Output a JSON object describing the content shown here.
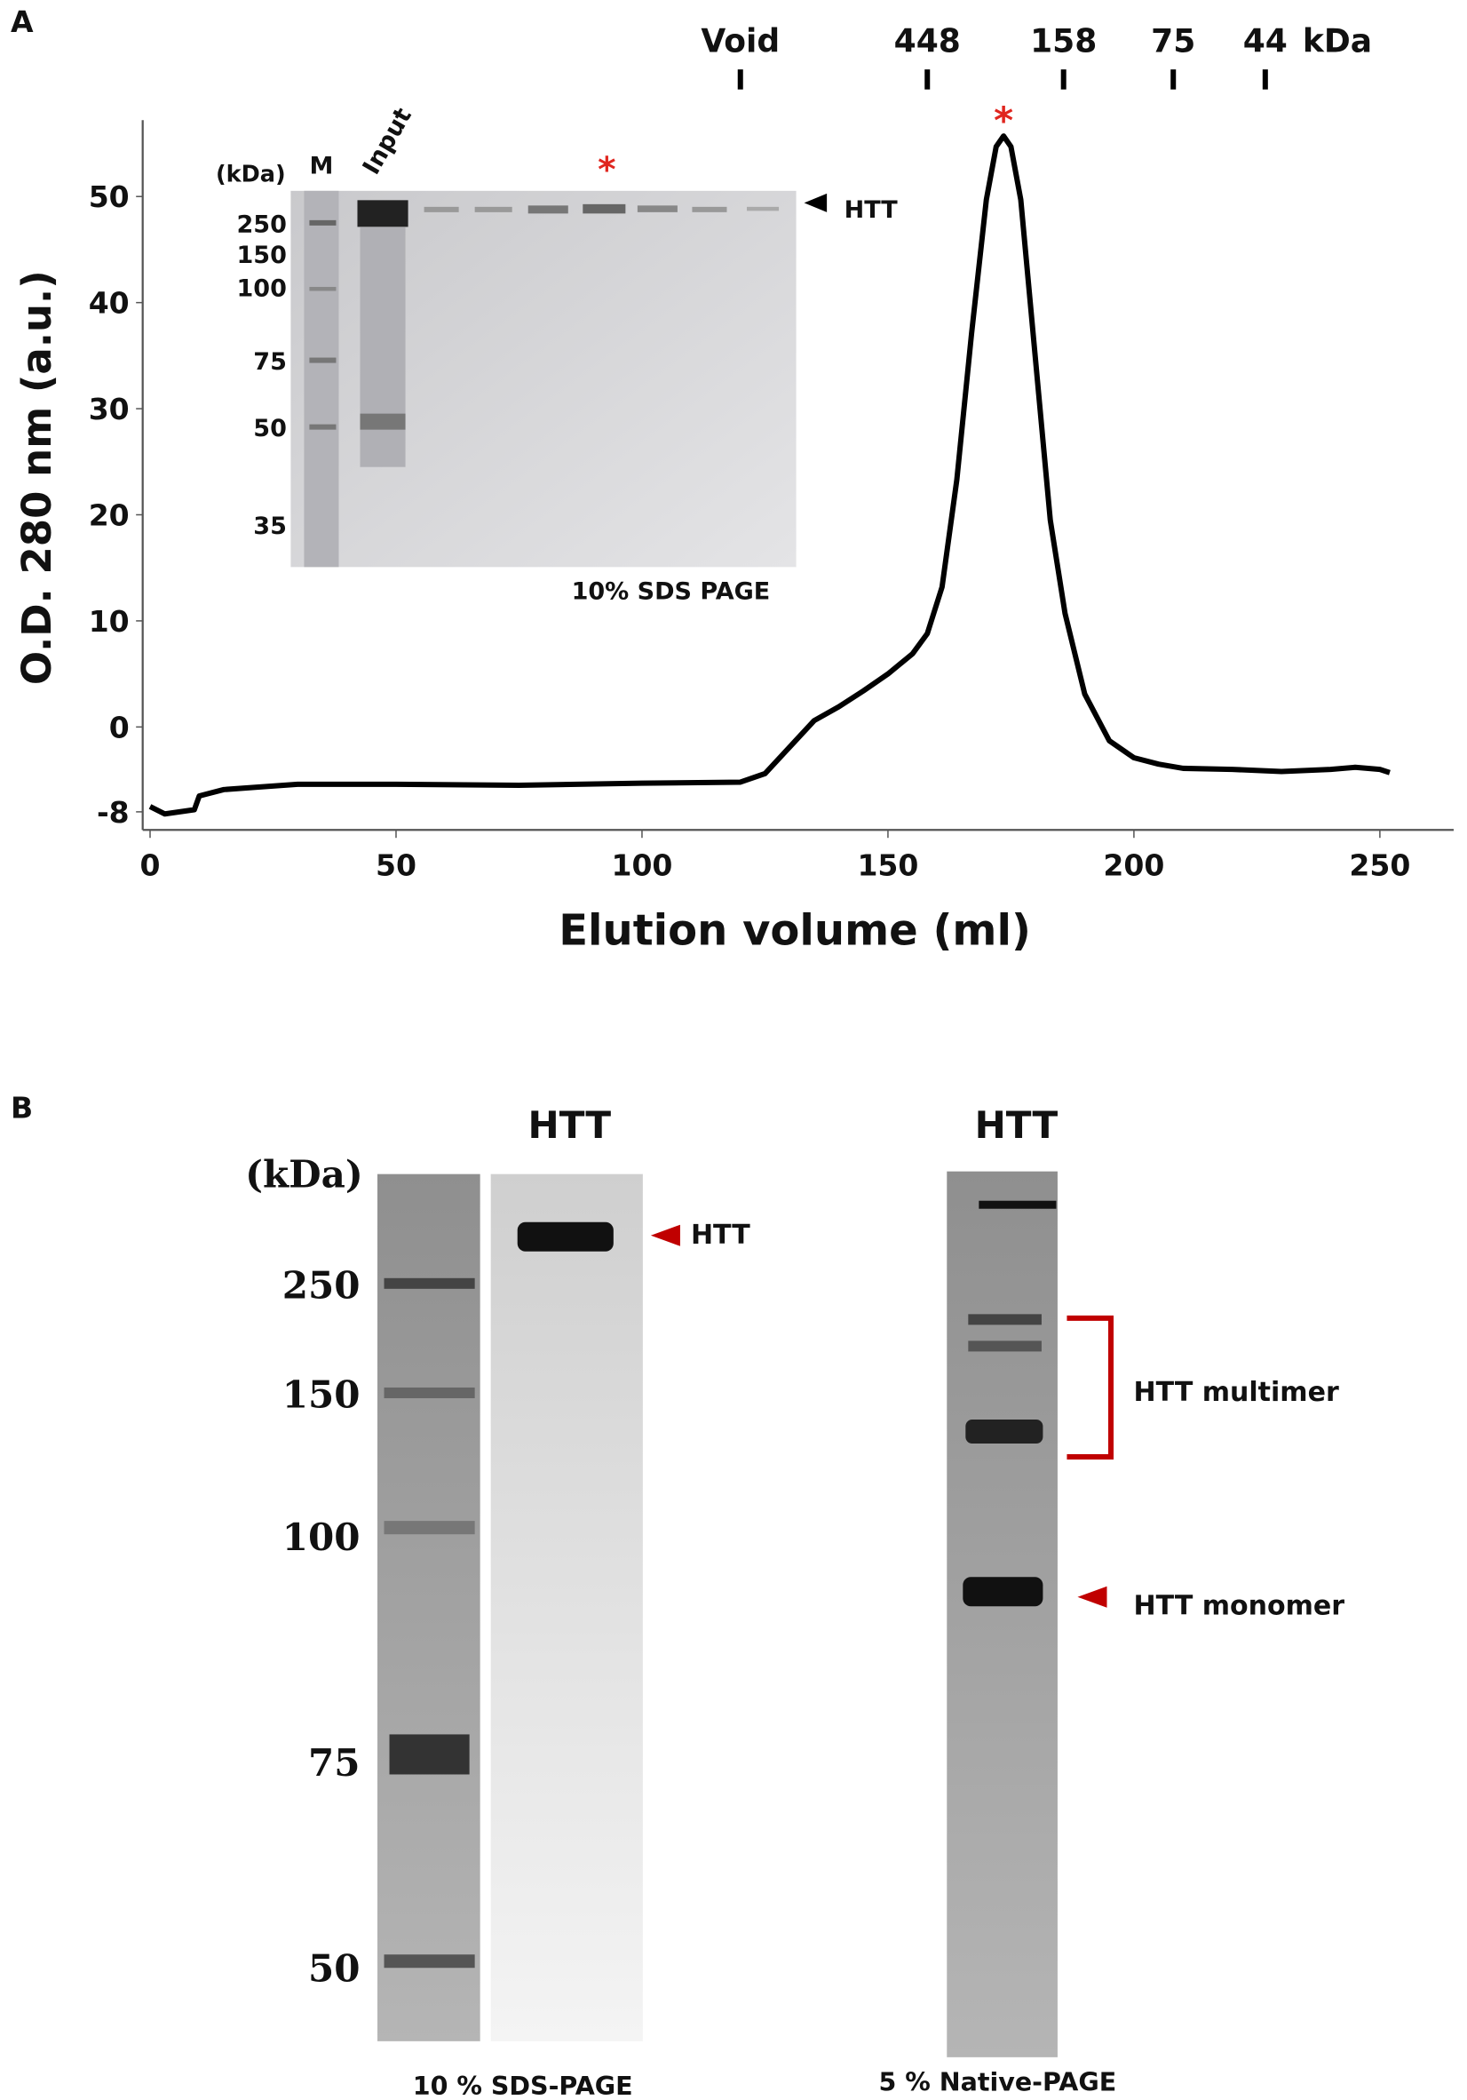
{
  "panel_labels": [
    "A",
    "B"
  ],
  "chart_data": {
    "type": "line",
    "x_label": "Elution volume (ml)",
    "y_label": "O.D. 280 nm (a.u.)",
    "x": [
      0,
      3,
      9,
      10,
      15,
      30,
      50,
      75,
      100,
      120,
      125,
      130,
      135,
      140,
      145,
      150,
      155,
      158,
      161,
      164,
      167,
      170,
      172,
      173.5,
      175,
      177,
      180,
      183,
      186,
      190,
      195,
      200,
      205,
      210,
      220,
      230,
      240,
      245,
      250,
      252
    ],
    "values": [
      -7.5,
      -8.2,
      -7.8,
      -6.5,
      -5.9,
      -5.4,
      -5.4,
      -5.5,
      -5.3,
      -5.2,
      -4.4,
      -1.9,
      0.6,
      1.9,
      3.4,
      5.0,
      6.9,
      8.8,
      13.2,
      23.3,
      37.1,
      49.7,
      54.7,
      55.7,
      54.7,
      49.7,
      34.6,
      19.5,
      10.7,
      3.1,
      -1.3,
      -2.9,
      -3.5,
      -3.9,
      -4.0,
      -4.2,
      -4.0,
      -3.8,
      -4.0,
      -4.3
    ],
    "color": "#000000",
    "xlim": [
      -1.5,
      265
    ],
    "xticks": [
      0,
      50,
      100,
      150,
      200,
      250
    ],
    "ylim": [
      -9.7,
      57.2
    ],
    "yticks": [
      -8,
      0,
      10,
      20,
      30,
      40,
      50
    ],
    "markers": [
      {
        "label": "Void",
        "x": 120
      },
      {
        "label": "448",
        "x": 158
      },
      {
        "label": "158",
        "x": 185.7
      },
      {
        "label": "75",
        "x": 208
      },
      {
        "label": "44",
        "x": 226.7
      }
    ],
    "marker_unit": "kDa",
    "peak_annotation": "*",
    "inset": {
      "lanes": [
        "M",
        "Input"
      ],
      "unit": "(kDa)",
      "ladder": [
        250,
        150,
        100,
        75,
        50,
        35
      ],
      "star": "*",
      "band_label": "HTT",
      "caption": "10% SDS PAGE"
    }
  },
  "panel_b": {
    "sds": {
      "title": "HTT",
      "unit": "(kDa)",
      "ladder": [
        250,
        150,
        100,
        75,
        50
      ],
      "band_label": "HTT",
      "caption": "10 % SDS-PAGE"
    },
    "native": {
      "title": "HTT",
      "multimer_label": "HTT multimer",
      "monomer_label": "HTT monomer",
      "caption": "5 % Native-PAGE"
    }
  }
}
